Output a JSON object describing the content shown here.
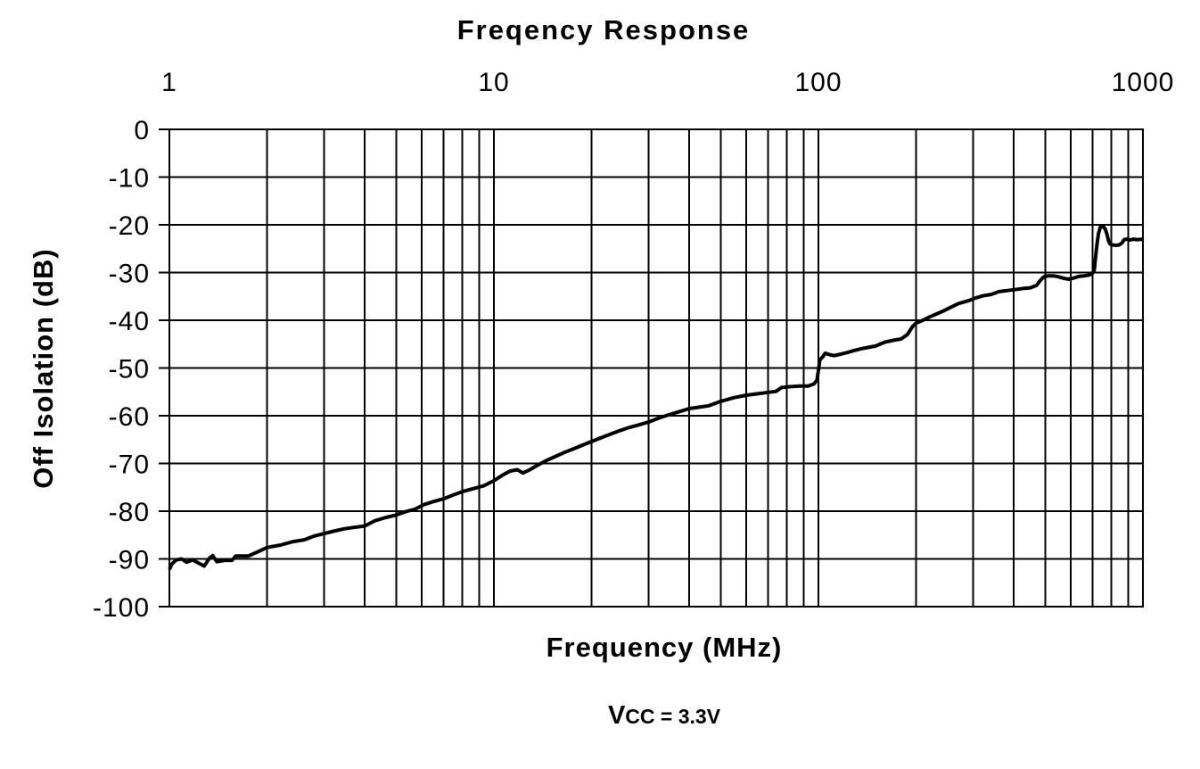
{
  "chart": {
    "title": "Freqency Response",
    "xlabel": "Frequency (MHz)",
    "ylabel": "Off Isolation (dB)",
    "caption": {
      "v": "V",
      "cc": "CC",
      "rest": " = 3.3V"
    }
  },
  "chart_data": {
    "type": "line",
    "title": "Freqency Response",
    "xlabel": "Frequency (MHz)",
    "ylabel": "Off Isolation (dB)",
    "annotation": "VCC = 3.3V",
    "x_scale": "log",
    "x_range": [
      1,
      1000
    ],
    "x_ticks": [
      1,
      10,
      100,
      1000
    ],
    "x_minor_ticks": [
      2,
      3,
      4,
      5,
      6,
      7,
      8,
      9,
      20,
      30,
      40,
      50,
      60,
      70,
      80,
      90,
      200,
      300,
      400,
      500,
      600,
      700,
      800,
      900
    ],
    "y_range": [
      0,
      -100
    ],
    "y_ticks": [
      0,
      -10,
      -20,
      -30,
      -40,
      -50,
      -60,
      -70,
      -80,
      -90,
      -100
    ],
    "grid": "on",
    "legend": "none",
    "colors": {
      "line": "#000000",
      "grid": "#000000",
      "text": "#000000",
      "background": "#ffffff"
    },
    "series": [
      {
        "name": "Off Isolation",
        "points": [
          [
            1.0,
            -92.2
          ],
          [
            1.02,
            -91.0
          ],
          [
            1.05,
            -90.2
          ],
          [
            1.09,
            -90.0
          ],
          [
            1.13,
            -90.7
          ],
          [
            1.18,
            -90.2
          ],
          [
            1.24,
            -91.0
          ],
          [
            1.28,
            -91.5
          ],
          [
            1.33,
            -89.8
          ],
          [
            1.36,
            -89.3
          ],
          [
            1.4,
            -90.6
          ],
          [
            1.48,
            -90.3
          ],
          [
            1.56,
            -90.3
          ],
          [
            1.6,
            -89.4
          ],
          [
            1.75,
            -89.4
          ],
          [
            1.9,
            -88.3
          ],
          [
            2.0,
            -87.6
          ],
          [
            2.2,
            -87.1
          ],
          [
            2.4,
            -86.4
          ],
          [
            2.6,
            -86.0
          ],
          [
            2.8,
            -85.2
          ],
          [
            3.0,
            -84.7
          ],
          [
            3.2,
            -84.2
          ],
          [
            3.45,
            -83.7
          ],
          [
            3.7,
            -83.4
          ],
          [
            4.0,
            -83.1
          ],
          [
            4.3,
            -82.0
          ],
          [
            4.65,
            -81.3
          ],
          [
            5.0,
            -80.8
          ],
          [
            5.35,
            -80.1
          ],
          [
            5.7,
            -79.6
          ],
          [
            6.1,
            -78.6
          ],
          [
            6.5,
            -78.0
          ],
          [
            7.0,
            -77.4
          ],
          [
            7.5,
            -76.6
          ],
          [
            8.0,
            -75.9
          ],
          [
            8.6,
            -75.3
          ],
          [
            9.3,
            -74.7
          ],
          [
            10.0,
            -73.6
          ],
          [
            10.6,
            -72.5
          ],
          [
            11.2,
            -71.6
          ],
          [
            11.8,
            -71.3
          ],
          [
            12.3,
            -72.0
          ],
          [
            12.9,
            -71.3
          ],
          [
            13.6,
            -70.4
          ],
          [
            14.5,
            -69.4
          ],
          [
            15.5,
            -68.5
          ],
          [
            16.6,
            -67.6
          ],
          [
            17.8,
            -66.8
          ],
          [
            19.0,
            -66.0
          ],
          [
            20.0,
            -65.4
          ],
          [
            22.0,
            -64.3
          ],
          [
            24.0,
            -63.3
          ],
          [
            26.0,
            -62.5
          ],
          [
            28.0,
            -61.9
          ],
          [
            30.0,
            -61.3
          ],
          [
            32.5,
            -60.4
          ],
          [
            35.0,
            -59.7
          ],
          [
            37.5,
            -59.1
          ],
          [
            40.0,
            -58.5
          ],
          [
            43.0,
            -58.2
          ],
          [
            46.0,
            -57.9
          ],
          [
            50.0,
            -57.0
          ],
          [
            55.0,
            -56.2
          ],
          [
            60.0,
            -55.7
          ],
          [
            65.0,
            -55.4
          ],
          [
            70.0,
            -55.1
          ],
          [
            74.0,
            -54.9
          ],
          [
            77.0,
            -54.1
          ],
          [
            82.0,
            -53.9
          ],
          [
            88.0,
            -53.8
          ],
          [
            93.0,
            -53.8
          ],
          [
            97.0,
            -53.3
          ],
          [
            99.0,
            -52.5
          ],
          [
            100.0,
            -50.5
          ],
          [
            101.0,
            -48.3
          ],
          [
            103.0,
            -47.7
          ],
          [
            105.0,
            -46.9
          ],
          [
            108.0,
            -47.2
          ],
          [
            112.0,
            -47.4
          ],
          [
            117.0,
            -47.1
          ],
          [
            122.0,
            -46.8
          ],
          [
            128.0,
            -46.4
          ],
          [
            135.0,
            -46.0
          ],
          [
            142.0,
            -45.7
          ],
          [
            150.0,
            -45.4
          ],
          [
            160.0,
            -44.6
          ],
          [
            170.0,
            -44.2
          ],
          [
            180.0,
            -43.9
          ],
          [
            188.0,
            -43.0
          ],
          [
            195.0,
            -41.3
          ],
          [
            200.0,
            -40.6
          ],
          [
            210.0,
            -40.0
          ],
          [
            220.0,
            -39.3
          ],
          [
            240.0,
            -38.2
          ],
          [
            250.0,
            -37.6
          ],
          [
            270.0,
            -36.5
          ],
          [
            290.0,
            -35.9
          ],
          [
            300.0,
            -35.5
          ],
          [
            320.0,
            -34.9
          ],
          [
            340.0,
            -34.6
          ],
          [
            360.0,
            -34.0
          ],
          [
            380.0,
            -33.8
          ],
          [
            400.0,
            -33.6
          ],
          [
            430.0,
            -33.3
          ],
          [
            450.0,
            -33.2
          ],
          [
            470.0,
            -32.7
          ],
          [
            485.0,
            -31.5
          ],
          [
            495.0,
            -30.9
          ],
          [
            510.0,
            -30.7
          ],
          [
            530.0,
            -30.7
          ],
          [
            550.0,
            -30.9
          ],
          [
            570.0,
            -31.2
          ],
          [
            590.0,
            -31.4
          ],
          [
            615.0,
            -31.1
          ],
          [
            635.0,
            -30.8
          ],
          [
            660.0,
            -30.7
          ],
          [
            685.0,
            -30.5
          ],
          [
            700.0,
            -30.1
          ],
          [
            708.0,
            -29.5
          ],
          [
            715.0,
            -26.5
          ],
          [
            722.0,
            -24.0
          ],
          [
            730.0,
            -21.8
          ],
          [
            740.0,
            -20.4
          ],
          [
            748.0,
            -20.2
          ],
          [
            757.0,
            -20.5
          ],
          [
            765.0,
            -20.9
          ],
          [
            775.0,
            -22.0
          ],
          [
            783.0,
            -23.3
          ],
          [
            792.0,
            -24.0
          ],
          [
            805.0,
            -24.2
          ],
          [
            825.0,
            -24.3
          ],
          [
            845.0,
            -24.2
          ],
          [
            862.0,
            -23.8
          ],
          [
            875.0,
            -23.1
          ],
          [
            890.0,
            -23.0
          ],
          [
            910.0,
            -23.2
          ],
          [
            935.0,
            -23.0
          ],
          [
            960.0,
            -23.1
          ],
          [
            1000.0,
            -23.0
          ]
        ]
      }
    ]
  }
}
